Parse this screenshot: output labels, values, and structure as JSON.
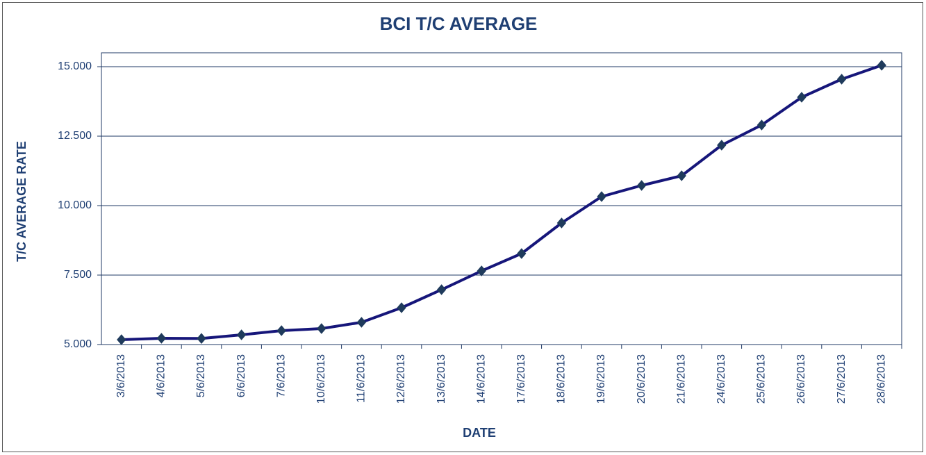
{
  "chart_data": {
    "type": "line",
    "title": "BCI T/C AVERAGE",
    "x_label": "DATE",
    "y_label": "T/C AVERAGE  RATE",
    "categories": [
      "3/6/2013",
      "4/6/2013",
      "5/6/2013",
      "6/6/2013",
      "7/6/2013",
      "10/6/2013",
      "11/6/2013",
      "12/6/2013",
      "13/6/2013",
      "14/6/2013",
      "17/6/2013",
      "18/6/2013",
      "19/6/2013",
      "20/6/2013",
      "21/6/2013",
      "24/6/2013",
      "25/6/2013",
      "26/6/2013",
      "27/6/2013",
      "28/6/2013"
    ],
    "values": [
      5175,
      5225,
      5220,
      5350,
      5500,
      5575,
      5800,
      6325,
      6975,
      7650,
      8275,
      9375,
      10325,
      10725,
      11075,
      12175,
      12900,
      13900,
      14550,
      15050
    ],
    "color": "#16167a",
    "marker_color": "#1f3b5c",
    "ylim": [
      5000,
      15500
    ],
    "yticks": [
      {
        "value": 5000,
        "label": "5.000"
      },
      {
        "value": 7500,
        "label": "7.500"
      },
      {
        "value": 10000,
        "label": "10.000"
      },
      {
        "value": 12500,
        "label": "12.500"
      },
      {
        "value": 15000,
        "label": "15.000"
      }
    ],
    "grid": true
  }
}
